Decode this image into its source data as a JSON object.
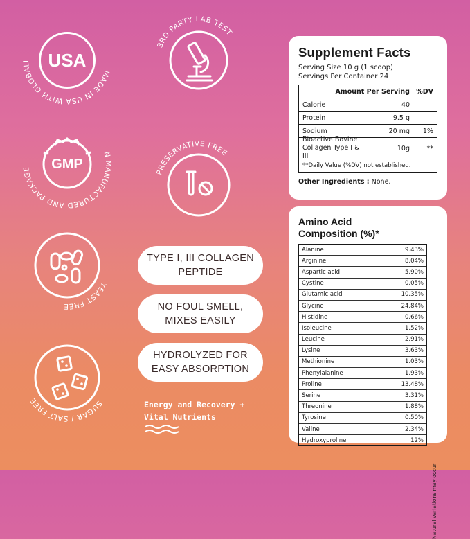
{
  "badges": {
    "usa": {
      "label": "USA",
      "ring_text": "MADE IN USA WITH GLOBALLY SOURCED INGREDIENTS"
    },
    "lab": {
      "ring_text": "3RD PARTY LAB TEST",
      "icon": "microscope-icon"
    },
    "gmp": {
      "label": "GMP",
      "ring_text": "N MANUFACTURED AND PACKAGED IN A GMP FACILITY IN CERTIFIED"
    },
    "preservative": {
      "ring_text": "PRESERVATIVE FREE",
      "icon": "test-tube-pill-icon"
    },
    "yeast": {
      "ring_text": "YEAST FREE",
      "icon": "yeast-cells-icon"
    },
    "sugar": {
      "ring_text": "SUGAR / SALT FREE",
      "icon": "sugar-cubes-icon"
    }
  },
  "pills": [
    {
      "line1": "TYPE I, III COLLAGEN",
      "line2": "PEPTIDE"
    },
    {
      "line1": "NO FOUL SMELL,",
      "line2": "MIXES EASILY"
    },
    {
      "line1": "HYDROLYZED FOR",
      "line2": "EASY ABSORPTION"
    }
  ],
  "tagline": {
    "line1": "Energy and Recovery +",
    "line2": "Vital Nutrients"
  },
  "supplement_facts": {
    "title": "Supplement Facts",
    "serving_size": "Serving Size 10 g (1 scoop)",
    "servings_per_container": "Servings Per Container 24",
    "header": {
      "amount": "Amount Per Serving",
      "dv": "%DV"
    },
    "rows": [
      {
        "name": "Calorie",
        "amount": "40",
        "dv": ""
      },
      {
        "name": "Protein",
        "amount": "9.5 g",
        "dv": ""
      },
      {
        "name": "Sodium",
        "amount": "20 mg",
        "dv": "1%"
      }
    ],
    "collagen": {
      "line1": "Bioactive Bovine",
      "line2": "Collagen Type I & III",
      "amount": "10g",
      "dv": "**"
    },
    "footnote": "**Daily Value (%DV) not established.",
    "other_label": "Other Ingredients :",
    "other_value": "None."
  },
  "amino": {
    "title_line1": "Amino Acid",
    "title_line2": "Composition (%)*",
    "note": "Natural variations may occur",
    "rows": [
      {
        "name": "Alanine",
        "value": "9.43%"
      },
      {
        "name": "Arginine",
        "value": "8.04%"
      },
      {
        "name": "Aspartic acid",
        "value": "5.90%"
      },
      {
        "name": "Cystine",
        "value": "0.05%"
      },
      {
        "name": "Glutamic acid",
        "value": "10.35%"
      },
      {
        "name": "Glycine",
        "value": "24.84%"
      },
      {
        "name": "Histidine",
        "value": "0.66%"
      },
      {
        "name": "Isoleucine",
        "value": "1.52%"
      },
      {
        "name": "Leucine",
        "value": "2.91%"
      },
      {
        "name": "Lysine",
        "value": "3.63%"
      },
      {
        "name": "Methionine",
        "value": "1.03%"
      },
      {
        "name": "Phenylalanine",
        "value": "1.93%"
      },
      {
        "name": "Proline",
        "value": "13.48%"
      },
      {
        "name": "Serine",
        "value": "3.31%"
      },
      {
        "name": "Threonine",
        "value": "1.88%"
      },
      {
        "name": "Tyrosine",
        "value": "0.50%"
      },
      {
        "name": "Valine",
        "value": "2.34%"
      },
      {
        "name": "Hydroxyproline",
        "value": "12%"
      }
    ]
  }
}
